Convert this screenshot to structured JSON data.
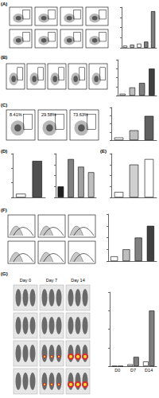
{
  "panel_labels": [
    "(A)",
    "(B)",
    "(C)",
    "(D)",
    "(E)",
    "(F)",
    "(G)"
  ],
  "flow_percentages": [
    "8.41%",
    "29.58%",
    "73.63%"
  ],
  "imaging_days": [
    "Day 0",
    "Day 7",
    "Day 14"
  ],
  "chart_data": [
    {
      "type": "bar",
      "categories": [
        null,
        null,
        null,
        null,
        null
      ],
      "values": [
        2,
        3,
        4,
        6,
        36
      ],
      "colors": [
        "#ffffff",
        "#bfbfbf",
        "#ffffff",
        "#808080",
        "#808080"
      ],
      "ylim": [
        0,
        40
      ],
      "yticks": [
        0,
        10,
        20,
        30,
        40
      ],
      "tick_labels": false
    },
    {
      "type": "bar",
      "categories": [
        null,
        null,
        null,
        null
      ],
      "values": [
        2,
        9,
        14,
        30
      ],
      "colors": [
        "#ffffff",
        "#bfbfbf",
        "#808080",
        "#404040"
      ],
      "ylim": [
        0,
        40
      ],
      "yticks": [
        0,
        10,
        20,
        30,
        40
      ],
      "tick_labels": false
    },
    {
      "type": "bar",
      "categories": [
        null,
        null,
        null
      ],
      "values": [
        8,
        30,
        74
      ],
      "colors": [
        "#ffffff",
        "#bfbfbf",
        "#606060"
      ],
      "ylim": [
        0,
        100
      ],
      "yticks": [
        0,
        25,
        50,
        75,
        100
      ],
      "tick_labels": false
    },
    {
      "type": "bar",
      "categories": [
        null,
        null
      ],
      "values": [
        10,
        100
      ],
      "colors": [
        "#ffffff",
        "#505050"
      ],
      "ylim": [
        0,
        120
      ],
      "yticks": [
        0,
        40,
        80,
        120
      ],
      "tick_labels": false
    },
    {
      "type": "bar",
      "categories": [
        null,
        null,
        null,
        null
      ],
      "values": [
        100,
        350,
        280,
        230
      ],
      "colors": [
        "#202020",
        "#808080",
        "#a0a0a0",
        "#c0c0c0"
      ],
      "ylim": [
        0,
        400
      ],
      "yticks": [
        0,
        100,
        200,
        300,
        400
      ],
      "tick_labels": false
    },
    {
      "type": "bar",
      "categories": [
        null,
        null,
        null
      ],
      "values": [
        1,
        6,
        7
      ],
      "colors": [
        "#ffffff",
        "#d0d0d0",
        "#ffffff"
      ],
      "ylim": [
        0,
        8
      ],
      "yticks": [
        0,
        2,
        4,
        6,
        8
      ],
      "tick_labels": false
    },
    {
      "type": "bar",
      "categories": [
        null,
        null,
        null,
        null
      ],
      "values": [
        10,
        25,
        50,
        75
      ],
      "colors": [
        "#ffffff",
        "#bfbfbf",
        "#808080",
        "#404040"
      ],
      "ylim": [
        0,
        100
      ],
      "yticks": [
        0,
        25,
        50,
        75,
        100
      ],
      "tick_labels": false
    },
    {
      "type": "bar",
      "categories": [
        "D0",
        "D7",
        "D14"
      ],
      "series": [
        {
          "color": "#ffffff",
          "values": [
            0,
            0.2,
            0.5
          ]
        },
        {
          "color": "#808080",
          "values": [
            0,
            1,
            6
          ]
        }
      ],
      "ylim": [
        0,
        8
      ],
      "yticks": [
        0,
        2,
        4,
        6,
        8
      ],
      "tick_labels": "x"
    }
  ]
}
